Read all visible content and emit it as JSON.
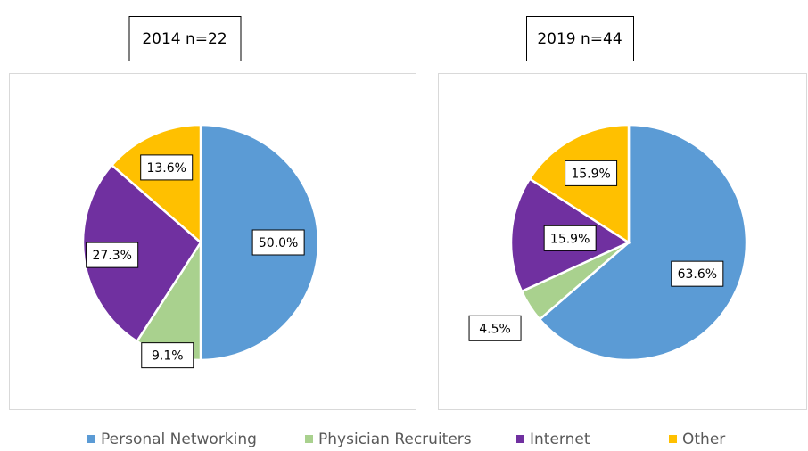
{
  "chart_data": [
    {
      "type": "pie",
      "title": "2014 n=22",
      "categories": [
        "Personal Networking",
        "Physician Recruiters",
        "Internet",
        "Other"
      ],
      "values": [
        50.0,
        9.1,
        27.3,
        13.6
      ],
      "value_labels": [
        "50.0%",
        "9.1%",
        "27.3%",
        "13.6%"
      ],
      "colors": [
        "#5b9bd5",
        "#a9d18e",
        "#7030a0",
        "#ffc000"
      ]
    },
    {
      "type": "pie",
      "title": "2019 n=44",
      "categories": [
        "Personal Networking",
        "Physician Recruiters",
        "Internet",
        "Other"
      ],
      "values": [
        63.6,
        4.5,
        15.9,
        15.9
      ],
      "value_labels": [
        "63.6%",
        "4.5%",
        "15.9%",
        "15.9%"
      ],
      "colors": [
        "#5b9bd5",
        "#a9d18e",
        "#7030a0",
        "#ffc000"
      ]
    }
  ]
}
